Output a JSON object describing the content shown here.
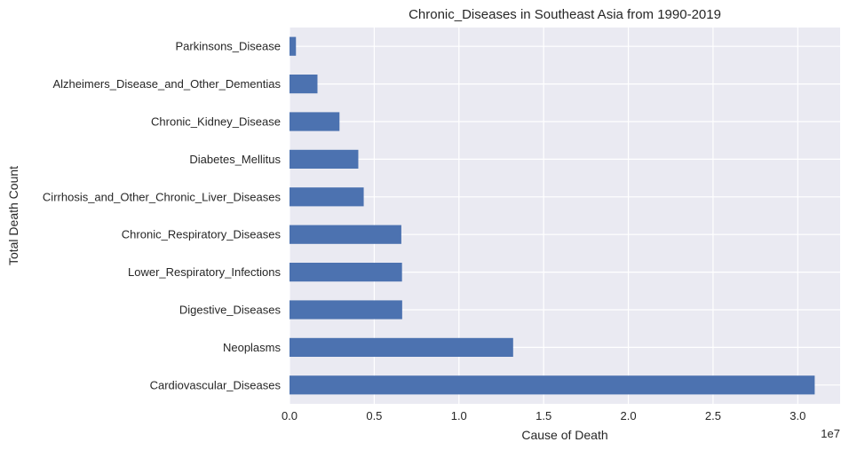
{
  "chart_data": {
    "type": "bar",
    "orientation": "horizontal",
    "title": "Chronic_Diseases in Southeast Asia from 1990-2019",
    "xlabel": "Cause of Death",
    "ylabel": "Total Death Count",
    "x_offset_label": "1e7",
    "xlim": [
      0,
      32500000
    ],
    "x_ticks": [
      0,
      5000000,
      10000000,
      15000000,
      20000000,
      25000000,
      30000000
    ],
    "x_tick_labels": [
      "0.0",
      "0.5",
      "1.0",
      "1.5",
      "2.0",
      "2.5",
      "3.0"
    ],
    "grid": true,
    "bar_color": "#4c72b0",
    "background_color": "#eaeaf2",
    "categories": [
      "Cardiovascular_Diseases",
      "Neoplasms",
      "Digestive_Diseases",
      "Lower_Respiratory_Infections",
      "Chronic_Respiratory_Diseases",
      "Cirrhosis_and_Other_Chronic_Liver_Diseases",
      "Diabetes_Mellitus",
      "Chronic_Kidney_Disease",
      "Alzheimers_Disease_and_Other_Dementias",
      "Parkinsons_Disease"
    ],
    "values": [
      31000000,
      13200000,
      6650000,
      6640000,
      6600000,
      4380000,
      4060000,
      2950000,
      1650000,
      380000
    ]
  }
}
